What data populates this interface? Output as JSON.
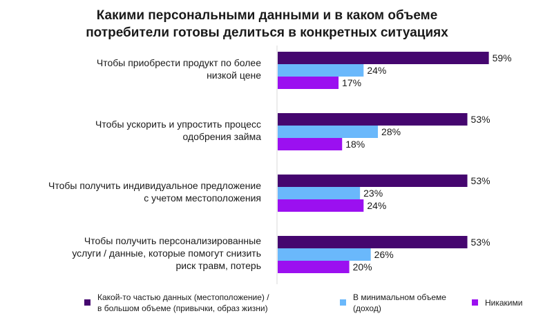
{
  "title_lines": [
    "Какими персональными данными и в каком объеме",
    "потребители готовы делиться в конкретных ситуациях"
  ],
  "chart_data": {
    "type": "bar",
    "orientation": "horizontal",
    "title": "Какими персональными данными и в каком объеме потребители готовы делиться в конкретных ситуациях",
    "categories": [
      [
        "Чтобы приобрести продукт по более",
        "низкой цене"
      ],
      [
        "Чтобы ускорить и упростить процесс",
        "одобрения займа"
      ],
      [
        "Чтобы получить индивидуальное предложение",
        "с учетом местоположения"
      ],
      [
        "Чтобы получить персонализированные",
        "услуги / данные, которые помогут снизить",
        "риск травм, потерь"
      ]
    ],
    "series": [
      {
        "name_lines": [
          "Какой-то частью данных (местоположение) /",
          "в большом объеме (привычки, образ жизни)"
        ],
        "color": "#45066f",
        "values": [
          59,
          53,
          53,
          53
        ]
      },
      {
        "name_lines": [
          "В минимальном объеме",
          "(доход)"
        ],
        "color": "#6ab8fb",
        "values": [
          24,
          28,
          23,
          26
        ]
      },
      {
        "name_lines": [
          "Никакими"
        ],
        "color": "#9b10f0",
        "values": [
          17,
          18,
          24,
          20
        ]
      }
    ],
    "value_suffix": "%",
    "xlim": [
      0,
      100
    ],
    "grid": false,
    "legend_position": "bottom"
  }
}
